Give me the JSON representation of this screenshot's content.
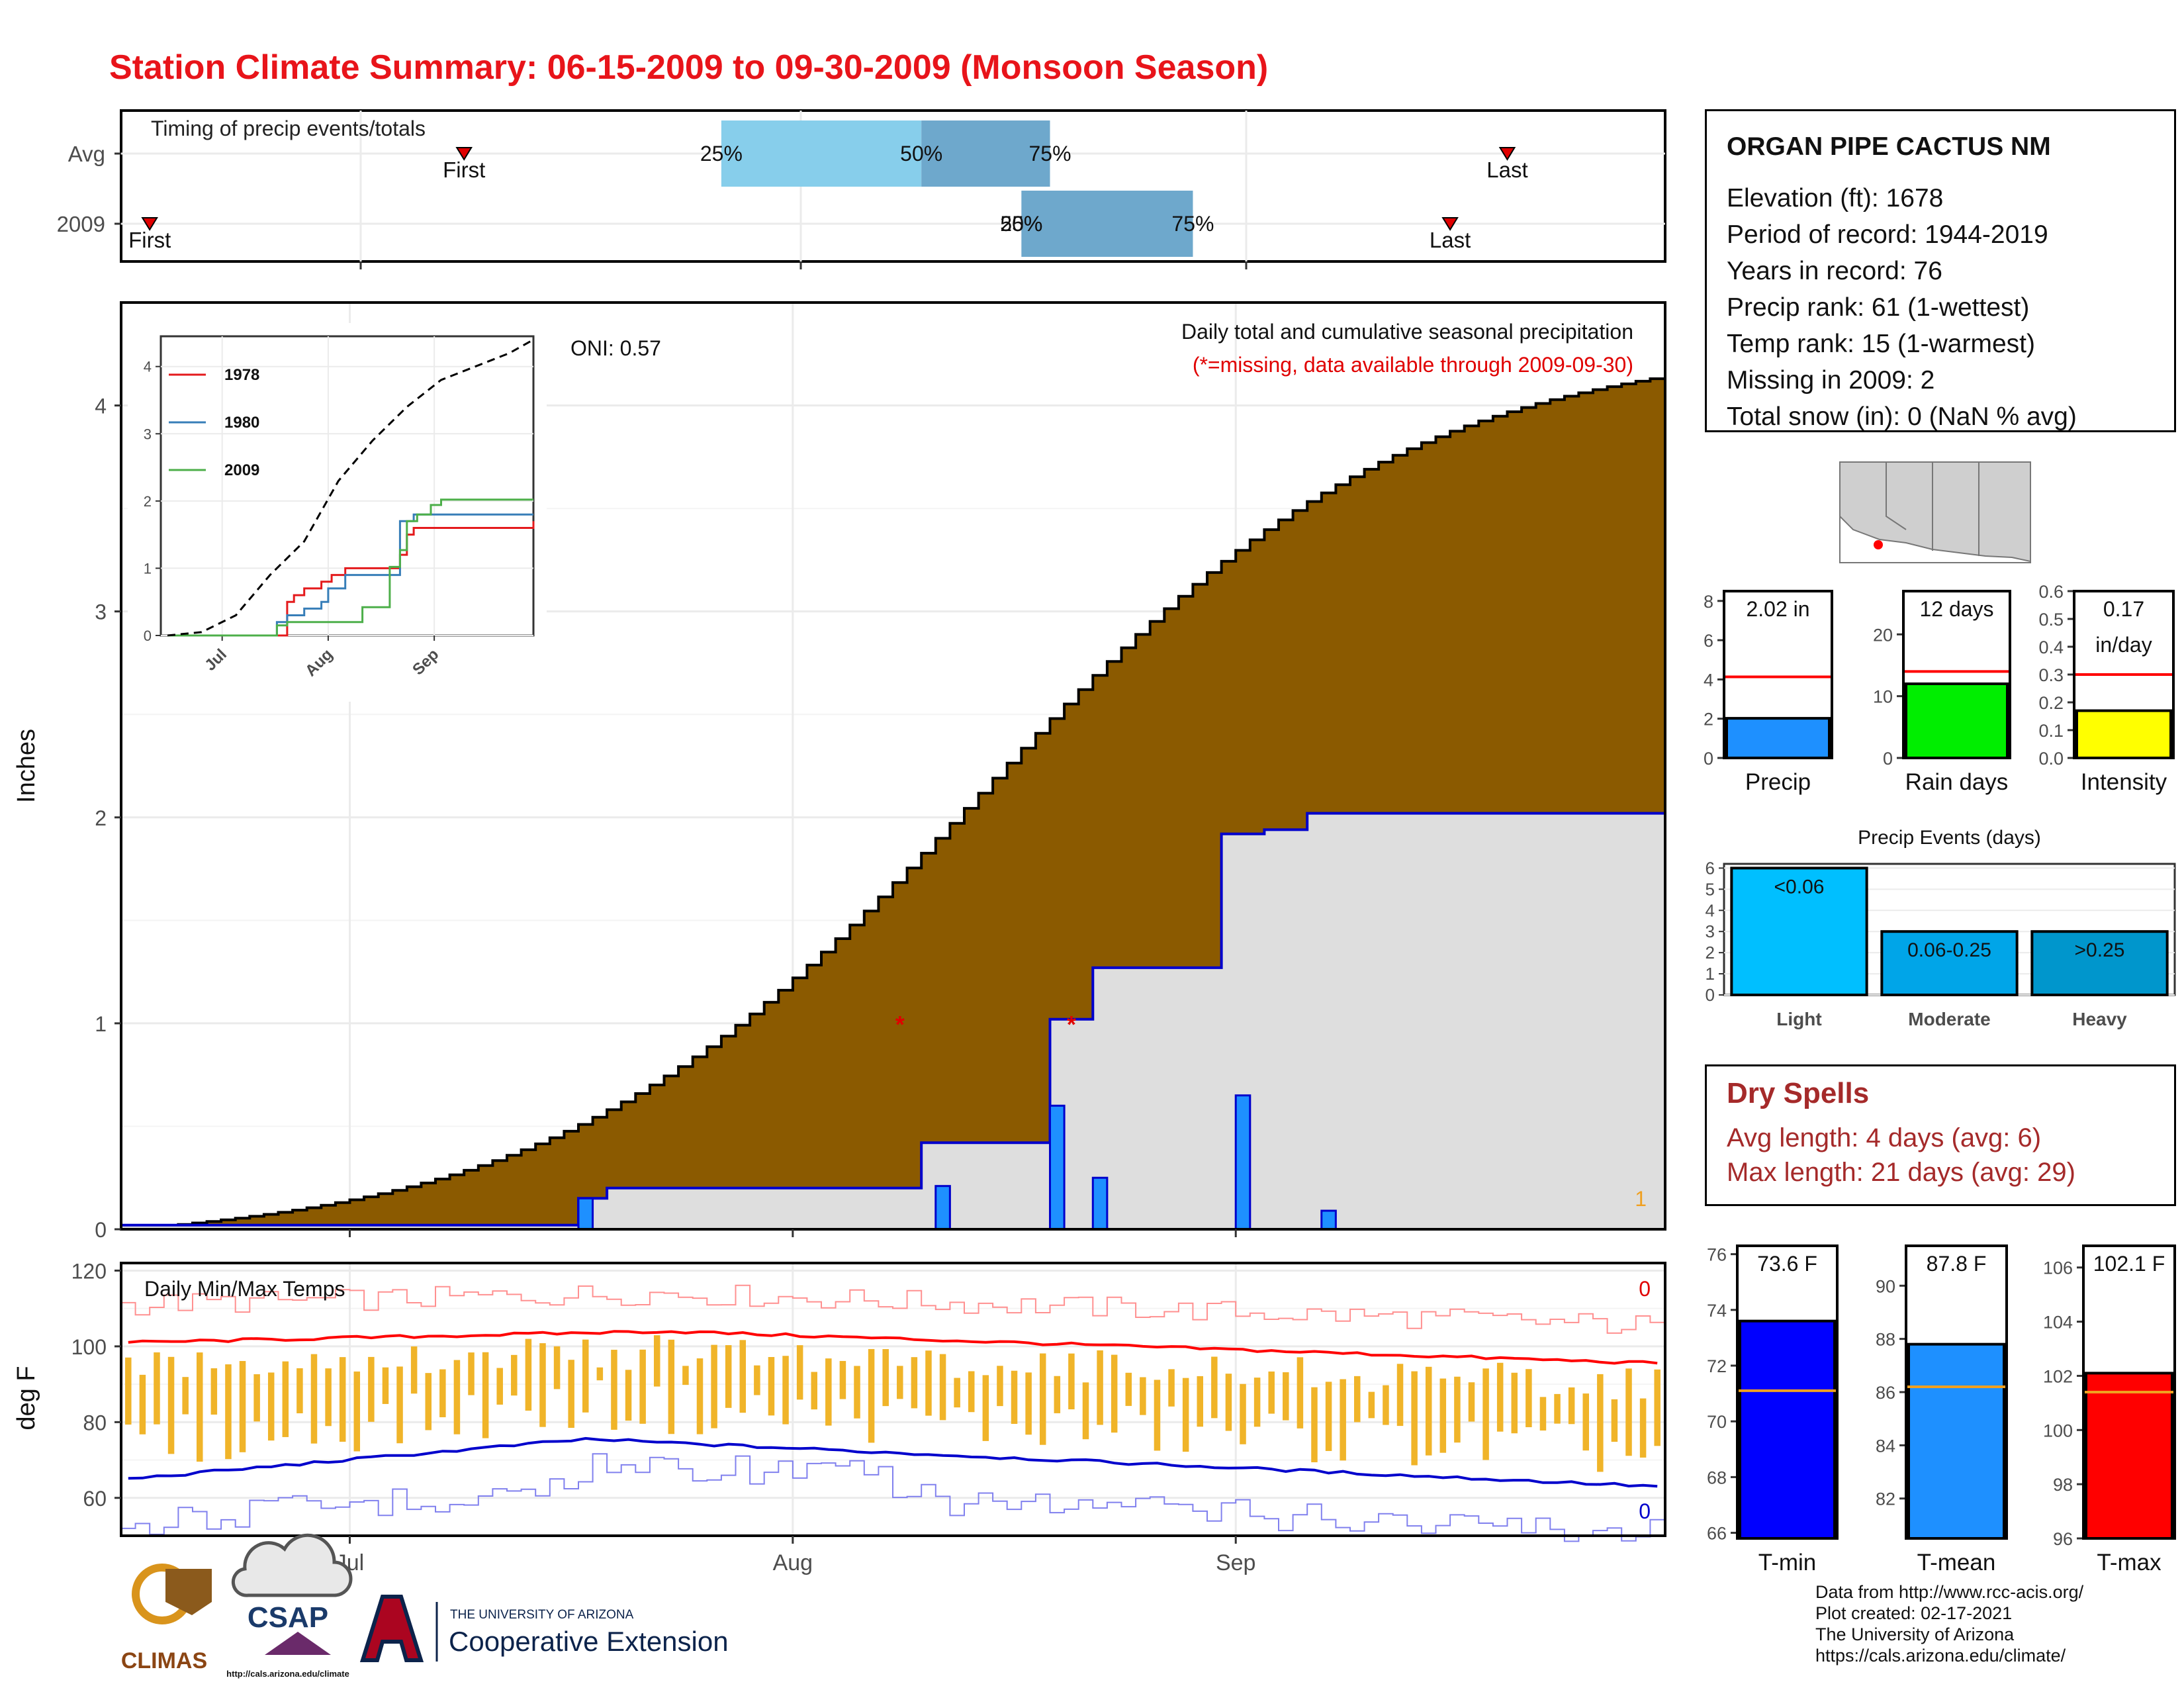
{
  "title": "Station Climate Summary: 06-15-2009 to 09-30-2009 (Monsoon Season)",
  "timing": {
    "label": "Timing of precip events/totals",
    "rows": [
      "Avg",
      "2009"
    ],
    "avg": {
      "first": "2009-07-09",
      "q25": "2009-07-27",
      "q50": "2009-08-10",
      "q75": "2009-08-19",
      "last": "2009-09-20"
    },
    "y2009": {
      "first": "2009-06-17",
      "q25": "2009-08-17",
      "q50": "2009-08-17",
      "q75": "2009-08-29",
      "last": "2009-09-16"
    },
    "first_label": "First",
    "last_label": "Last",
    "q25_label": "25%",
    "q50_label": "50%",
    "q75_label": "75%",
    "q2009_overlap_label": "25%",
    "q2009_overlap_label2": "50%",
    "colors": {
      "q1": "#87ceeb",
      "q2": "#6ea8cc",
      "marker": "#e00000"
    }
  },
  "station": {
    "name": "ORGAN PIPE CACTUS NM",
    "lines": [
      "Elevation (ft): 1678",
      "Period of record: 1944-2019",
      "Years in record: 76",
      "Precip rank: 61 (1-wettest)",
      "Temp rank: 15 (1-warmest)",
      "Missing in 2009: 2",
      "Total snow (in): 0 (NaN % avg)"
    ]
  },
  "logos": {
    "climas": "CLIMAS",
    "csap": "CSAP",
    "csap_url": "http://cals.arizona.edu/climate",
    "ua_small": "THE UNIVERSITY OF ARIZONA",
    "ua_big": "Cooperative Extension"
  },
  "credits": [
    "Data from http://www.rcc-acis.org/",
    "Plot created: 02-17-2021",
    "The University of Arizona",
    "https://cals.arizona.edu/climate/"
  ],
  "dry_spells": {
    "title": "Dry Spells",
    "avg": "Avg length: 4 days (avg: 6)",
    "max": "Max length: 21 days (avg: 29)"
  },
  "chart_data": [
    {
      "id": "cumulative_precip",
      "type": "area",
      "start_date": "2009-06-15",
      "end_date": "2009-09-30",
      "ylabel": "Inches",
      "ylim": [
        0,
        4.5
      ],
      "yticks": [
        0,
        1,
        2,
        3,
        4
      ],
      "xticks": [
        "Jul",
        "Aug",
        "Sep"
      ],
      "xtick_dates": [
        "2009-07-01",
        "2009-08-01",
        "2009-09-01"
      ],
      "annotation_oni": "ONI: 0.57",
      "annotation_title": "Daily total and cumulative seasonal precipitation",
      "annotation_missing": "(*=missing, data available through 2009-09-30)",
      "corner_count": "1",
      "avg_cumulative_total": 4.13,
      "obs_cumulative_steps": [
        {
          "date": "2009-06-15",
          "value": 0.02
        },
        {
          "date": "2009-07-17",
          "value": 0.15
        },
        {
          "date": "2009-07-19",
          "value": 0.2
        },
        {
          "date": "2009-08-10",
          "value": 0.42
        },
        {
          "date": "2009-08-19",
          "value": 1.02
        },
        {
          "date": "2009-08-22",
          "value": 1.27
        },
        {
          "date": "2009-08-31",
          "value": 1.92
        },
        {
          "date": "2009-09-03",
          "value": 1.94
        },
        {
          "date": "2009-09-06",
          "value": 2.02
        }
      ],
      "daily_bars": [
        {
          "date": "2009-07-17",
          "value": 0.15
        },
        {
          "date": "2009-08-11",
          "value": 0.21
        },
        {
          "date": "2009-08-19",
          "value": 0.6
        },
        {
          "date": "2009-08-22",
          "value": 0.25
        },
        {
          "date": "2009-09-01",
          "value": 0.65
        },
        {
          "date": "2009-09-07",
          "value": 0.09
        }
      ],
      "missing_dates": [
        "2009-08-08",
        "2009-08-20"
      ],
      "colors": {
        "avg_fill": "#8b5a00",
        "obs_fill": "#dedede",
        "obs_line": "#0000cc",
        "bars": "#1e90ff"
      }
    },
    {
      "id": "inset_cumulative",
      "type": "line",
      "yticks": [
        0,
        1,
        2,
        3,
        4
      ],
      "xticks": [
        "Jul",
        "Aug",
        "Sep"
      ],
      "series": [
        {
          "name": "1978",
          "color": "#e41a1c",
          "points": [
            [
              0,
              0
            ],
            [
              35,
              0.5
            ],
            [
              37,
              0.6
            ],
            [
              40,
              0.7
            ],
            [
              45,
              0.8
            ],
            [
              48,
              0.9
            ],
            [
              52,
              1.0
            ],
            [
              65,
              1.0
            ],
            [
              68,
              1.2
            ],
            [
              70,
              1.5
            ],
            [
              72,
              1.6
            ],
            [
              107,
              1.7
            ]
          ]
        },
        {
          "name": "1980",
          "color": "#377eb8",
          "points": [
            [
              0,
              0
            ],
            [
              32,
              0.2
            ],
            [
              35,
              0.3
            ],
            [
              40,
              0.4
            ],
            [
              45,
              0.5
            ],
            [
              47,
              0.7
            ],
            [
              52,
              0.9
            ],
            [
              66,
              0.9
            ],
            [
              68,
              1.7
            ],
            [
              72,
              1.8
            ],
            [
              107,
              1.8
            ]
          ]
        },
        {
          "name": "2009",
          "color": "#4daf4a",
          "points": [
            [
              0,
              0
            ],
            [
              32,
              0.15
            ],
            [
              35,
              0.2
            ],
            [
              57,
              0.42
            ],
            [
              65,
              1.02
            ],
            [
              68,
              1.27
            ],
            [
              70,
              1.7
            ],
            [
              73,
              1.8
            ],
            [
              77,
              1.94
            ],
            [
              80,
              2.02
            ],
            [
              107,
              2.02
            ]
          ]
        }
      ],
      "avg_points": [
        [
          0,
          0
        ],
        [
          10,
          0.05
        ],
        [
          20,
          0.3
        ],
        [
          30,
          0.9
        ],
        [
          40,
          1.4
        ],
        [
          50,
          2.3
        ],
        [
          60,
          2.9
        ],
        [
          70,
          3.4
        ],
        [
          80,
          3.8
        ],
        [
          90,
          4.0
        ],
        [
          100,
          4.2
        ],
        [
          107,
          4.4
        ]
      ]
    },
    {
      "id": "daily_temps",
      "type": "line",
      "label": "Daily Min/Max Temps",
      "ylabel": "deg F",
      "ylim": [
        50,
        122
      ],
      "yticks": [
        60,
        80,
        100,
        120
      ],
      "xticks": [
        "Jul",
        "Aug",
        "Sep"
      ],
      "count_max": "0",
      "count_min": "0",
      "avg_max_start": 101,
      "avg_max_peak": 104,
      "avg_max_end": 95.5,
      "avg_min_start": 65,
      "avg_min_peak": 75.5,
      "avg_min_end": 63,
      "colors": {
        "bars": "#f0b429",
        "avg_max": "#ff0000",
        "avg_min": "#0000cc",
        "rec_max": "#ff9090",
        "rec_min": "#8080ee"
      }
    },
    {
      "id": "precip_total",
      "type": "bar",
      "categories": [
        "Precip"
      ],
      "values": [
        2.02
      ],
      "value_label": "2.02 in",
      "avg": 4.13,
      "ylim": [
        0,
        8.5
      ],
      "yticks": [
        0,
        2,
        4,
        6,
        8
      ],
      "color": "#1e90ff"
    },
    {
      "id": "rain_days",
      "type": "bar",
      "categories": [
        "Rain days"
      ],
      "values": [
        12
      ],
      "value_label": "12 days",
      "avg": 14,
      "ylim": [
        0,
        27
      ],
      "yticks": [
        0,
        10,
        20
      ],
      "color": "#00ee00"
    },
    {
      "id": "intensity",
      "type": "bar",
      "categories": [
        "Intensity"
      ],
      "values": [
        0.17
      ],
      "value_label": "0.17",
      "value_unit": "in/day",
      "avg": 0.3,
      "ylim": [
        0,
        0.6
      ],
      "yticks": [
        0.0,
        0.1,
        0.2,
        0.3,
        0.4,
        0.5,
        0.6
      ],
      "color": "#ffff00"
    },
    {
      "id": "precip_events",
      "type": "bar",
      "title": "Precip Events (days)",
      "categories": [
        "Light",
        "Moderate",
        "Heavy"
      ],
      "values": [
        6,
        3,
        3
      ],
      "bar_labels": [
        "<0.06",
        "0.06-0.25",
        ">0.25"
      ],
      "ylim": [
        0,
        6.2
      ],
      "yticks": [
        0,
        1,
        2,
        3,
        4,
        5,
        6
      ],
      "colors": [
        "#00bfff",
        "#00a5e8",
        "#0096cc"
      ]
    },
    {
      "id": "tmin",
      "type": "bar",
      "categories": [
        "T-min"
      ],
      "values": [
        73.6
      ],
      "value_label": "73.6 F",
      "avg": 71.1,
      "ylim": [
        65.8,
        76.3
      ],
      "yticks": [
        66,
        68,
        70,
        72,
        74,
        76
      ],
      "color": "#0000ff"
    },
    {
      "id": "tmean",
      "type": "bar",
      "categories": [
        "T-mean"
      ],
      "values": [
        87.8
      ],
      "value_label": "87.8 F",
      "avg": 86.2,
      "ylim": [
        80.5,
        91.5
      ],
      "yticks": [
        82,
        84,
        86,
        88,
        90
      ],
      "color": "#1e90ff"
    },
    {
      "id": "tmax",
      "type": "bar",
      "categories": [
        "T-max"
      ],
      "values": [
        102.1
      ],
      "value_label": "102.1 F",
      "avg": 101.4,
      "ylim": [
        96,
        106.8
      ],
      "yticks": [
        96,
        98,
        100,
        102,
        104,
        106
      ],
      "color": "#ff0000"
    }
  ]
}
